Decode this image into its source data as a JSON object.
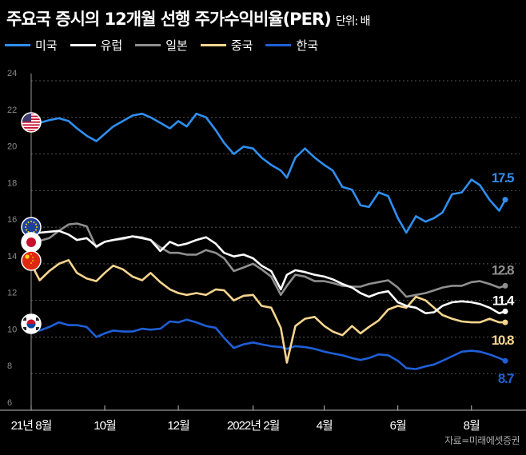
{
  "title": "주요국 증시의 12개월 선행 주가수익비율(PER)",
  "unit": "단위: 배",
  "source": "자료=미래에셋증권",
  "chart_data": {
    "type": "line",
    "title": "주요국 증시의 12개월 선행 주가수익비율(PER)",
    "ylabel": "",
    "xlabel": "",
    "ylim": [
      6,
      24
    ],
    "yticks": [
      6,
      8,
      10,
      12,
      14,
      16,
      18,
      20,
      22,
      24
    ],
    "xrange": [
      "2021-08-01",
      "2022-08-29"
    ],
    "xticks": [
      {
        "date": "2021-08-01",
        "label": "21년 8월"
      },
      {
        "date": "2021-10-01",
        "label": "10월"
      },
      {
        "date": "2021-12-01",
        "label": "12월"
      },
      {
        "date": "2022-02-01",
        "label": "2022년 2월"
      },
      {
        "date": "2022-04-01",
        "label": "4월"
      },
      {
        "date": "2022-06-01",
        "label": "6월"
      },
      {
        "date": "2022-08-01",
        "label": "8월"
      }
    ],
    "grid": "horizontal dashed",
    "legend": "top-left",
    "x": [
      "2021-08-01",
      "2021-08-08",
      "2021-08-16",
      "2021-08-24",
      "2021-09-01",
      "2021-09-08",
      "2021-09-16",
      "2021-09-24",
      "2021-10-01",
      "2021-10-08",
      "2021-10-16",
      "2021-10-24",
      "2021-11-01",
      "2021-11-08",
      "2021-11-16",
      "2021-11-24",
      "2021-12-01",
      "2021-12-08",
      "2021-12-16",
      "2021-12-24",
      "2022-01-01",
      "2022-01-08",
      "2022-01-16",
      "2022-01-24",
      "2022-02-01",
      "2022-02-08",
      "2022-02-16",
      "2022-02-24",
      "2022-03-01",
      "2022-03-08",
      "2022-03-16",
      "2022-03-24",
      "2022-04-01",
      "2022-04-08",
      "2022-04-16",
      "2022-04-24",
      "2022-05-01",
      "2022-05-08",
      "2022-05-16",
      "2022-05-24",
      "2022-06-01",
      "2022-06-08",
      "2022-06-16",
      "2022-06-24",
      "2022-07-01",
      "2022-07-08",
      "2022-07-16",
      "2022-07-24",
      "2022-08-01",
      "2022-08-08",
      "2022-08-16",
      "2022-08-24",
      "2022-08-29"
    ],
    "series": [
      {
        "name": "미국",
        "color": "#2f8ff0",
        "flag": "us-flag",
        "end_label": "17.5",
        "values": [
          21.6,
          21.7,
          21.85,
          21.95,
          21.8,
          21.4,
          21.0,
          20.7,
          21.1,
          21.5,
          21.8,
          22.1,
          22.2,
          22.0,
          21.7,
          21.4,
          21.8,
          21.5,
          22.2,
          22.0,
          21.3,
          20.6,
          20.0,
          20.4,
          20.3,
          19.8,
          19.4,
          19.1,
          18.7,
          19.8,
          20.3,
          19.8,
          19.4,
          19.1,
          18.2,
          18.05,
          17.2,
          17.1,
          17.9,
          17.7,
          16.5,
          15.7,
          16.6,
          16.3,
          16.5,
          16.8,
          17.8,
          17.9,
          18.6,
          18.3,
          17.5,
          16.9,
          17.5
        ]
      },
      {
        "name": "유럽",
        "color": "#ffffff",
        "flag": "eu-flag",
        "end_label": "11.4",
        "values": [
          15.6,
          15.7,
          15.75,
          15.8,
          15.6,
          15.3,
          15.4,
          14.95,
          15.2,
          15.3,
          15.4,
          15.5,
          15.4,
          15.3,
          14.7,
          15.2,
          15.0,
          15.1,
          15.3,
          15.45,
          15.1,
          14.6,
          14.4,
          14.5,
          14.3,
          13.9,
          13.6,
          12.6,
          13.4,
          13.65,
          13.55,
          13.4,
          13.3,
          13.15,
          12.9,
          12.7,
          12.4,
          12.2,
          12.4,
          12.5,
          11.9,
          11.7,
          11.6,
          11.3,
          11.35,
          11.7,
          11.9,
          11.95,
          11.9,
          11.8,
          11.6,
          11.3,
          11.4
        ]
      },
      {
        "name": "일본",
        "color": "#8f8f8f",
        "flag": "japan-flag",
        "end_label": "12.8",
        "values": [
          15.2,
          15.25,
          15.4,
          15.8,
          16.15,
          16.2,
          16.05,
          14.9,
          15.2,
          15.3,
          15.35,
          15.5,
          15.45,
          15.3,
          14.9,
          14.6,
          14.6,
          14.5,
          14.5,
          14.75,
          14.6,
          14.3,
          13.6,
          13.8,
          14.0,
          13.7,
          13.3,
          12.3,
          12.8,
          13.4,
          13.3,
          13.05,
          13.05,
          12.95,
          12.8,
          12.75,
          12.75,
          12.9,
          13.0,
          13.1,
          12.7,
          12.2,
          12.3,
          12.4,
          12.55,
          12.7,
          12.8,
          12.8,
          13.0,
          13.05,
          12.9,
          12.7,
          12.8
        ]
      },
      {
        "name": "중국",
        "color": "#f7d58e",
        "flag": "china-flag",
        "end_label": "10.8",
        "values": [
          14.0,
          13.1,
          13.6,
          14.0,
          14.2,
          13.5,
          13.2,
          13.05,
          13.5,
          13.9,
          13.7,
          13.3,
          13.1,
          13.5,
          13.0,
          12.6,
          12.4,
          12.3,
          12.4,
          12.3,
          12.6,
          12.55,
          12.0,
          12.25,
          12.3,
          11.7,
          11.6,
          10.5,
          8.6,
          10.6,
          11.0,
          11.1,
          10.6,
          10.3,
          10.1,
          10.6,
          10.2,
          10.55,
          10.9,
          11.5,
          11.7,
          11.6,
          12.2,
          12.0,
          11.6,
          11.2,
          11.0,
          10.85,
          10.8,
          10.8,
          11.0,
          10.8,
          10.8
        ]
      },
      {
        "name": "한국",
        "color": "#1f5fd8",
        "flag": "korea-flag",
        "end_label": "8.7",
        "values": [
          10.5,
          10.35,
          10.55,
          10.8,
          10.65,
          10.65,
          10.55,
          10.0,
          10.2,
          10.35,
          10.3,
          10.3,
          10.45,
          10.4,
          10.45,
          10.85,
          10.8,
          10.95,
          10.8,
          10.6,
          10.5,
          9.95,
          9.4,
          9.6,
          9.7,
          9.6,
          9.5,
          9.45,
          9.35,
          9.5,
          9.45,
          9.35,
          9.2,
          9.1,
          9.0,
          8.85,
          8.75,
          8.85,
          9.05,
          9.0,
          8.7,
          8.3,
          8.25,
          8.4,
          8.5,
          8.7,
          8.95,
          9.2,
          9.25,
          9.2,
          9.05,
          8.85,
          8.7
        ]
      }
    ]
  }
}
